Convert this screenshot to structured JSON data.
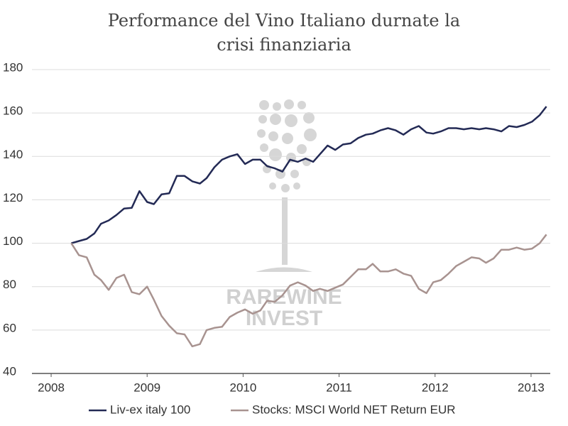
{
  "chart_data": {
    "type": "line",
    "title": "Performance del Vino Italiano durnate la crisi finanziaria",
    "watermark": [
      "RAREWINE",
      "INVEST"
    ],
    "x": [
      2008.21,
      2008.29,
      2008.37,
      2008.45,
      2008.52,
      2008.6,
      2008.68,
      2008.76,
      2008.84,
      2008.92,
      2009.0,
      2009.07,
      2009.15,
      2009.23,
      2009.31,
      2009.39,
      2009.47,
      2009.55,
      2009.62,
      2009.7,
      2009.78,
      2009.86,
      2009.94,
      2010.02,
      2010.1,
      2010.18,
      2010.25,
      2010.33,
      2010.41,
      2010.49,
      2010.57,
      2010.65,
      2010.73,
      2010.8,
      2010.88,
      2010.96,
      2011.04,
      2011.12,
      2011.2,
      2011.28,
      2011.35,
      2011.43,
      2011.51,
      2011.59,
      2011.67,
      2011.75,
      2011.83,
      2011.91,
      2011.98,
      2012.06,
      2012.14,
      2012.22,
      2012.3,
      2012.38,
      2012.46,
      2012.53,
      2012.61,
      2012.69,
      2012.77,
      2012.85,
      2012.93,
      2013.01,
      2013.09,
      2013.16
    ],
    "series": [
      {
        "name": "Liv-ex italy 100",
        "color": "#232a55",
        "values": [
          100,
          101,
          102,
          104.5,
          109,
          110.5,
          113,
          116,
          116.3,
          124,
          119,
          118,
          122.5,
          123,
          131,
          131,
          128.5,
          127.5,
          130,
          135,
          138.5,
          140,
          141,
          136.5,
          138.5,
          138.5,
          135.5,
          134.5,
          133,
          138.5,
          137.5,
          139,
          137.5,
          141,
          145,
          143,
          145.5,
          146,
          148.5,
          150,
          150.5,
          152,
          153,
          152,
          150,
          152.5,
          154,
          151,
          150.5,
          151.5,
          153,
          153,
          152.5,
          153,
          152.5,
          153,
          152.5,
          151.5,
          154,
          153.5,
          154.5,
          156,
          159,
          163
        ]
      },
      {
        "name": "Stocks: MSCI World NET Return EUR",
        "color": "#a89390",
        "values": [
          100,
          94.5,
          93.5,
          85.5,
          83,
          78.5,
          84,
          85.5,
          77.5,
          76.5,
          80,
          74,
          66.5,
          62,
          58.5,
          58,
          52.5,
          53.5,
          60,
          61,
          61.5,
          66,
          68,
          69.5,
          67.5,
          69,
          73.5,
          73,
          76,
          80.5,
          82,
          80.5,
          78,
          79,
          78,
          79.5,
          81,
          84.5,
          88,
          88,
          90.5,
          87,
          87,
          88,
          86,
          85,
          79,
          77,
          82,
          83,
          86,
          89.5,
          91.5,
          93.5,
          93,
          91,
          93,
          97,
          97,
          98,
          97,
          97.5,
          100,
          104
        ]
      }
    ],
    "xlim": [
      2007.8,
      2013.2
    ],
    "xticks": [
      2008,
      2009,
      2010,
      2011,
      2012,
      2013
    ],
    "ylim": [
      40,
      180
    ],
    "yticks": [
      40,
      60,
      80,
      100,
      120,
      140,
      160,
      180
    ],
    "grid": true,
    "legend": "bottom"
  }
}
